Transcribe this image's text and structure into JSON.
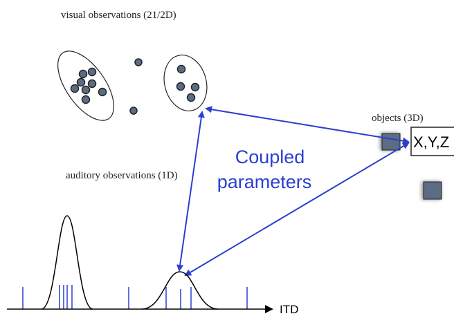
{
  "visual_label": "visual observations (21/2D)",
  "objects_label": "objects (3D)",
  "object_coords": "X,Y,Z",
  "coupled_line1": "Coupled",
  "coupled_line2": "parameters",
  "auditory_label": "auditory observations (1D)",
  "axis_label": "ITD"
}
